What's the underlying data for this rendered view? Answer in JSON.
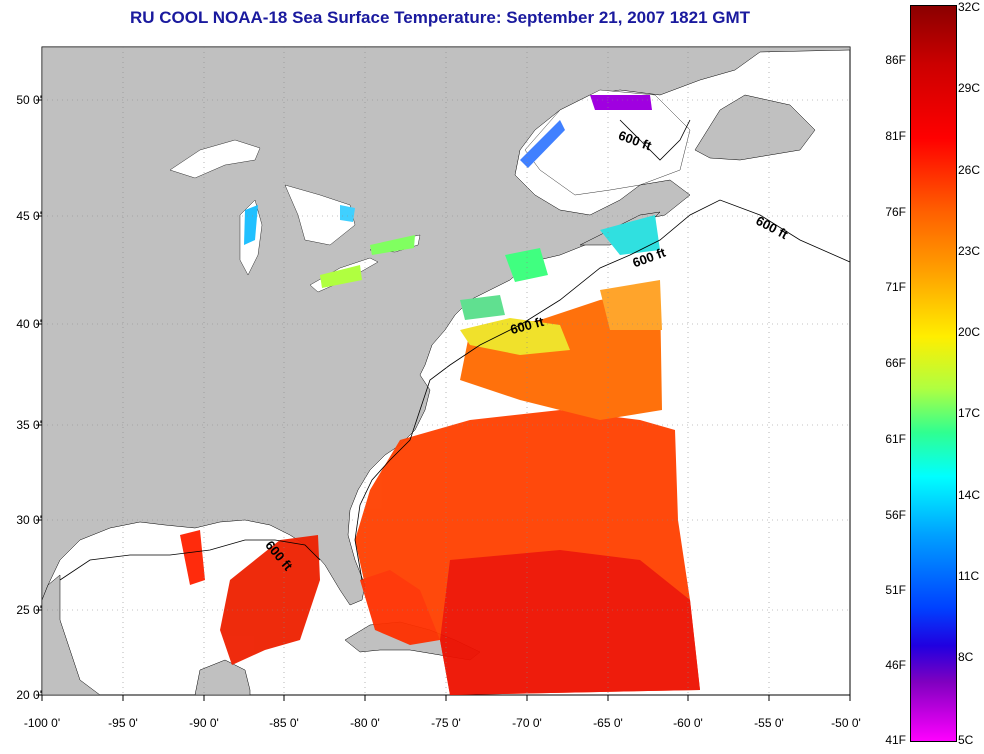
{
  "title": "RU COOL  NOAA-18  Sea Surface Temperature:  September 21, 2007 1821 GMT",
  "y_axis_labels": [
    "50 0'",
    "45 0'",
    "40 0'",
    "35 0'",
    "30 0'",
    "25 0'",
    "20 0'"
  ],
  "x_axis_labels": [
    "-100 0'",
    "-95 0'",
    "-90 0'",
    "-85 0'",
    "-80 0'",
    "-75 0'",
    "-70 0'",
    "-65 0'",
    "-60 0'",
    "-55 0'",
    "-50 0'"
  ],
  "contour_labels": [
    "600 ft",
    "600 ft",
    "600 ft",
    "600 ft",
    "600 ft"
  ],
  "colorbar": {
    "celsius_labels": [
      "32C",
      "29C",
      "26C",
      "23C",
      "20C",
      "17C",
      "14C",
      "11C",
      "8C",
      "5C"
    ],
    "fahrenheit_labels": [
      "86F",
      "81F",
      "76F",
      "71F",
      "66F",
      "61F",
      "56F",
      "51F",
      "46F",
      "41F"
    ]
  },
  "colors": {
    "land": "#c0c0c0",
    "cloud": "#ffffff",
    "title": "#1a1a9e",
    "warm_water": "#ee2000",
    "cool_water": "#30e0e0"
  }
}
